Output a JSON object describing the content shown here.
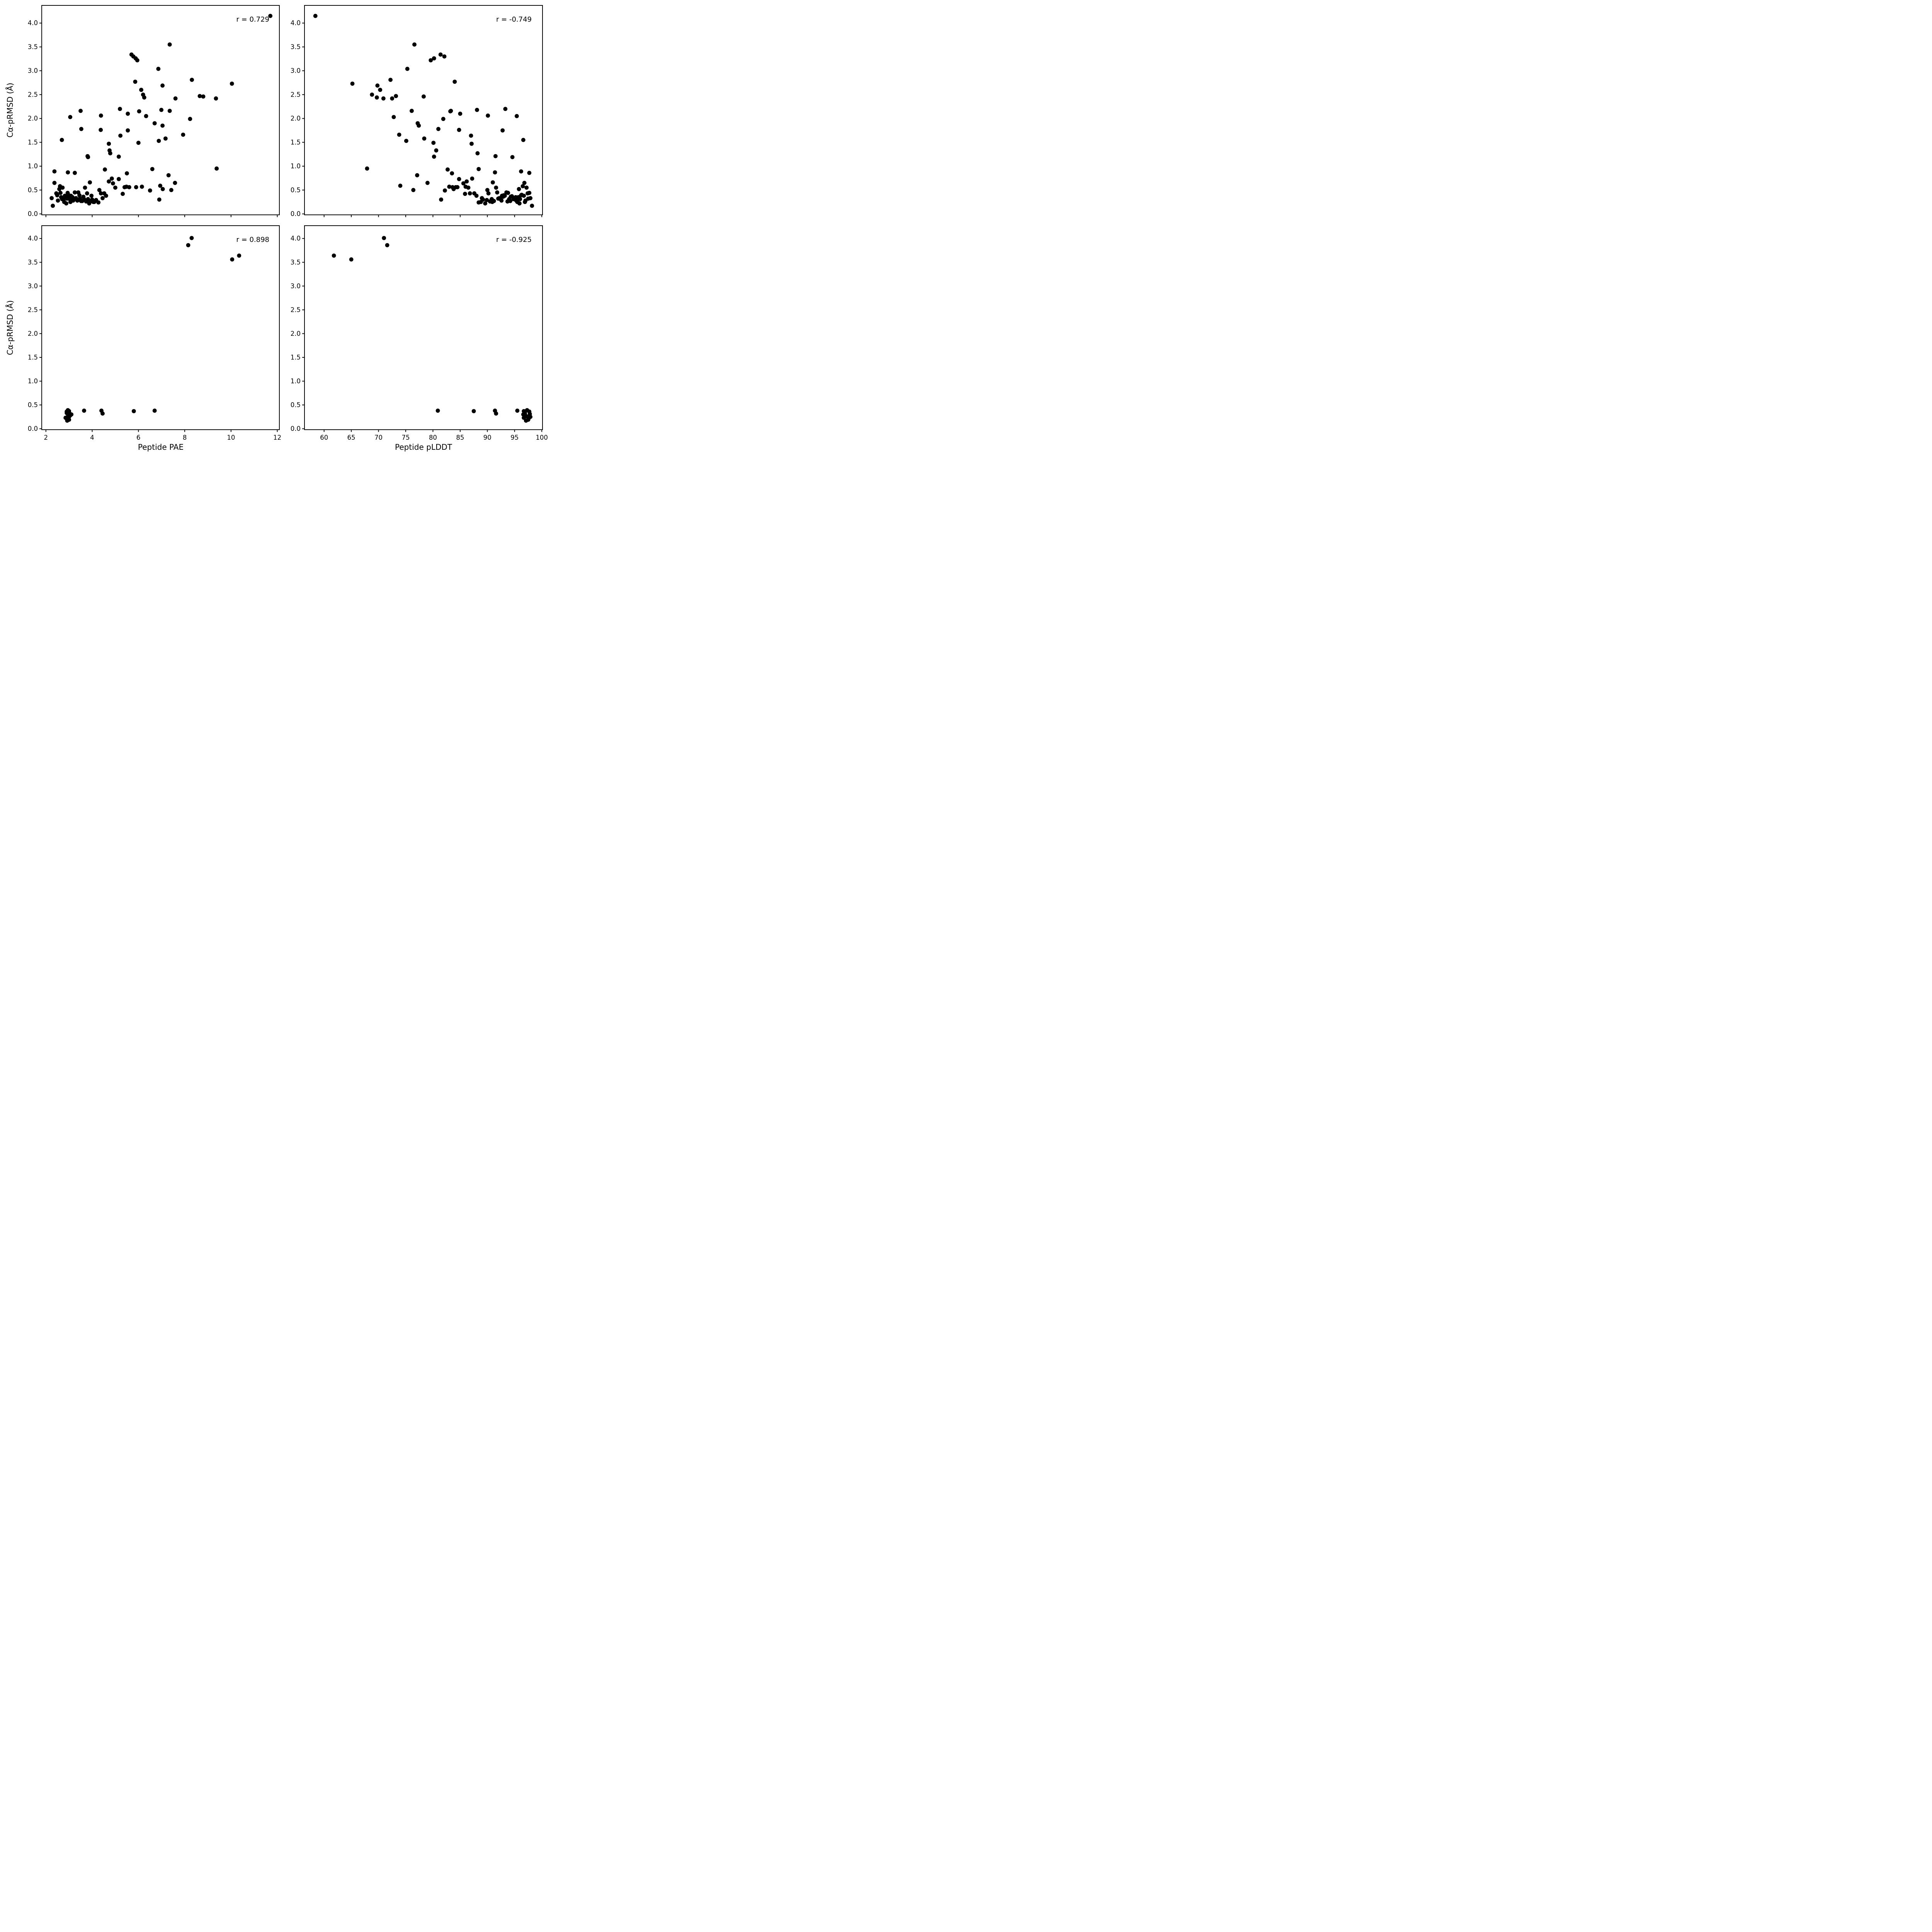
{
  "figure": {
    "background": "#ffffff",
    "marker_color": "#000000",
    "axis_color": "#000000"
  },
  "chart_data": [
    {
      "id": "top-left",
      "type": "scatter",
      "xlabel": "Peptide PAE",
      "ylabel": "Cα-pRMSD (Å)",
      "annotation": "r = 0.729",
      "xlim": [
        1.82,
        12.09
      ],
      "ylim": [
        -0.02,
        4.37
      ],
      "xticks": [
        2,
        4,
        6,
        8,
        10,
        12
      ],
      "xtick_labels": [
        "2",
        "4",
        "6",
        "8",
        "10",
        "12"
      ],
      "show_xtick_labels": false,
      "yticks": [
        0,
        0.5,
        1,
        1.5,
        2,
        2.5,
        3,
        3.5,
        4
      ],
      "ytick_labels": [
        "0.0",
        "0.5",
        "1.0",
        "1.5",
        "2.0",
        "2.5",
        "3.0",
        "3.5",
        "4.0"
      ],
      "grid": false,
      "x": [
        11.7,
        7.35,
        5.7,
        5.78,
        5.88,
        5.95,
        6.86,
        8.31,
        5.86,
        10.04,
        7.04,
        6.12,
        6.2,
        6.25,
        8.65,
        8.8,
        9.35,
        7.6,
        3.5,
        3.05,
        4.38,
        5.54,
        6.03,
        6.33,
        6.99,
        7.35,
        8.23,
        5.2,
        6.7,
        7.04,
        3.53,
        4.37,
        5.54,
        7.93,
        5.22,
        6.88,
        2.69,
        7.17,
        4.72,
        6.0,
        4.75,
        3.8,
        4.78,
        3.82,
        5.15,
        9.38,
        6.6,
        7.3,
        2.37,
        3.25,
        2.95,
        5.5,
        4.55,
        2.25,
        2.3,
        2.37,
        2.45,
        2.49,
        2.52,
        2.58,
        2.61,
        2.63,
        2.66,
        2.7,
        2.72,
        2.76,
        2.79,
        2.82,
        2.86,
        2.88,
        2.91,
        2.94,
        2.97,
        3.0,
        3.03,
        3.06,
        3.08,
        3.11,
        3.15,
        3.18,
        3.21,
        3.25,
        3.3,
        3.36,
        3.4,
        3.45,
        3.47,
        3.52,
        3.57,
        3.62,
        3.65,
        3.69,
        3.74,
        3.78,
        3.82,
        3.87,
        3.9,
        3.92,
        3.97,
        4.0,
        4.05,
        4.09,
        4.17,
        4.27,
        4.31,
        4.38,
        4.45,
        4.52,
        4.6,
        4.72,
        4.85,
        4.9,
        5.0,
        5.15,
        5.32,
        5.4,
        5.48,
        5.6,
        5.9,
        6.15,
        6.5,
        6.94,
        7.05,
        7.42,
        7.58,
        6.9
      ],
      "y": [
        4.15,
        3.55,
        3.34,
        3.3,
        3.26,
        3.22,
        3.04,
        2.81,
        2.77,
        2.73,
        2.69,
        2.6,
        2.5,
        2.44,
        2.47,
        2.46,
        2.42,
        2.42,
        2.16,
        2.03,
        2.06,
        2.1,
        2.15,
        2.05,
        2.18,
        2.16,
        1.99,
        2.2,
        1.9,
        1.85,
        1.78,
        1.76,
        1.75,
        1.66,
        1.64,
        1.53,
        1.55,
        1.58,
        1.47,
        1.49,
        1.33,
        1.21,
        1.27,
        1.19,
        1.2,
        0.95,
        0.94,
        0.81,
        0.89,
        0.86,
        0.87,
        0.85,
        0.93,
        0.33,
        0.17,
        0.65,
        0.43,
        0.39,
        0.28,
        0.52,
        0.58,
        0.44,
        0.35,
        0.31,
        0.55,
        0.31,
        0.25,
        0.38,
        0.36,
        0.22,
        0.32,
        0.44,
        0.4,
        0.37,
        0.31,
        0.25,
        0.38,
        0.31,
        0.35,
        0.28,
        0.31,
        0.45,
        0.33,
        0.28,
        0.45,
        0.39,
        0.32,
        0.27,
        0.27,
        0.36,
        0.31,
        0.55,
        0.26,
        0.43,
        0.31,
        0.22,
        0.66,
        0.26,
        0.38,
        0.3,
        0.25,
        0.25,
        0.29,
        0.24,
        0.5,
        0.43,
        0.33,
        0.43,
        0.38,
        0.68,
        0.74,
        0.64,
        0.55,
        0.73,
        0.42,
        0.56,
        0.57,
        0.56,
        0.56,
        0.57,
        0.49,
        0.59,
        0.52,
        0.5,
        0.65,
        0.3
      ]
    },
    {
      "id": "top-right",
      "type": "scatter",
      "xlabel": "Peptide pLDDT",
      "ylabel": "Cα-pRMSD (Å)",
      "annotation": "r = -0.749",
      "xlim": [
        56.4,
        100.13
      ],
      "ylim": [
        -0.02,
        4.37
      ],
      "xticks": [
        60,
        65,
        70,
        75,
        80,
        85,
        90,
        95,
        100
      ],
      "xtick_labels": [
        "60",
        "65",
        "70",
        "75",
        "80",
        "85",
        "90",
        "95",
        "100"
      ],
      "show_xtick_labels": false,
      "yticks": [
        0,
        0.5,
        1,
        1.5,
        2,
        2.5,
        3,
        3.5,
        4
      ],
      "ytick_labels": [
        "0.0",
        "0.5",
        "1.0",
        "1.5",
        "2.0",
        "2.5",
        "3.0",
        "3.5",
        "4.0"
      ],
      "grid": false,
      "x": [
        58.4,
        76.6,
        81.4,
        82.1,
        80.2,
        79.6,
        75.3,
        72.2,
        84.0,
        65.2,
        69.8,
        70.3,
        68.8,
        69.7,
        73.2,
        78.3,
        70.9,
        72.5,
        76.1,
        72.8,
        90.1,
        85.0,
        83.2,
        95.4,
        88.1,
        83.3,
        81.9,
        93.3,
        77.2,
        77.4,
        81.0,
        84.8,
        92.8,
        73.8,
        87.0,
        75.1,
        96.6,
        78.4,
        87.1,
        80.1,
        80.6,
        91.5,
        88.2,
        94.6,
        80.2,
        67.9,
        88.4,
        77.1,
        96.2,
        97.7,
        91.4,
        83.5,
        82.7,
        97.9,
        98.2,
        96.8,
        97.4,
        96.2,
        97.0,
        95.8,
        96.5,
        97.7,
        95.2,
        96.0,
        97.2,
        94.8,
        95.5,
        96.7,
        94.3,
        95.9,
        97.5,
        93.8,
        96.3,
        94.5,
        95.1,
        96.9,
        93.2,
        94.0,
        95.7,
        92.6,
        94.9,
        93.5,
        92.2,
        95.3,
        91.8,
        93.0,
        92.0,
        94.2,
        91.2,
        92.9,
        90.8,
        91.6,
        93.7,
        90.2,
        92.4,
        89.6,
        91.0,
        90.5,
        92.7,
        89.2,
        90.9,
        88.8,
        89.9,
        88.4,
        90.0,
        87.6,
        89.0,
        86.8,
        88.0,
        86.2,
        87.2,
        85.6,
        86.5,
        84.8,
        85.9,
        84.2,
        86.0,
        83.6,
        84.5,
        83.0,
        82.2,
        74.0,
        83.8,
        76.4,
        79.0,
        81.5
      ],
      "y": [
        4.15,
        3.55,
        3.34,
        3.3,
        3.26,
        3.22,
        3.04,
        2.81,
        2.77,
        2.73,
        2.69,
        2.6,
        2.5,
        2.44,
        2.47,
        2.46,
        2.42,
        2.42,
        2.16,
        2.03,
        2.06,
        2.1,
        2.15,
        2.05,
        2.18,
        2.16,
        1.99,
        2.2,
        1.9,
        1.85,
        1.78,
        1.76,
        1.75,
        1.66,
        1.64,
        1.53,
        1.55,
        1.58,
        1.47,
        1.49,
        1.33,
        1.21,
        1.27,
        1.19,
        1.2,
        0.95,
        0.94,
        0.81,
        0.89,
        0.86,
        0.87,
        0.85,
        0.93,
        0.33,
        0.17,
        0.65,
        0.43,
        0.39,
        0.28,
        0.52,
        0.58,
        0.44,
        0.35,
        0.31,
        0.55,
        0.31,
        0.25,
        0.38,
        0.36,
        0.22,
        0.32,
        0.44,
        0.4,
        0.37,
        0.31,
        0.25,
        0.38,
        0.31,
        0.35,
        0.28,
        0.31,
        0.45,
        0.33,
        0.28,
        0.45,
        0.39,
        0.32,
        0.27,
        0.27,
        0.36,
        0.31,
        0.55,
        0.26,
        0.43,
        0.31,
        0.22,
        0.66,
        0.26,
        0.38,
        0.3,
        0.25,
        0.25,
        0.29,
        0.24,
        0.5,
        0.43,
        0.33,
        0.43,
        0.38,
        0.68,
        0.74,
        0.64,
        0.55,
        0.73,
        0.42,
        0.56,
        0.57,
        0.56,
        0.56,
        0.57,
        0.49,
        0.59,
        0.52,
        0.5,
        0.65,
        0.3
      ]
    },
    {
      "id": "bottom-left",
      "type": "scatter",
      "xlabel": "Peptide PAE",
      "ylabel": "Cα-pRMSD (Å)",
      "annotation": "r = 0.898",
      "xlim": [
        1.82,
        12.09
      ],
      "ylim": [
        -0.02,
        4.27
      ],
      "xticks": [
        2,
        4,
        6,
        8,
        10,
        12
      ],
      "xtick_labels": [
        "2",
        "4",
        "6",
        "8",
        "10",
        "12"
      ],
      "show_xtick_labels": true,
      "yticks": [
        0,
        0.5,
        1,
        1.5,
        2,
        2.5,
        3,
        3.5,
        4
      ],
      "ytick_labels": [
        "0.0",
        "0.5",
        "1.0",
        "1.5",
        "2.0",
        "2.5",
        "3.0",
        "3.5",
        "4.0"
      ],
      "grid": false,
      "x": [
        8.3,
        8.15,
        10.35,
        10.05,
        6.7,
        5.8,
        3.65,
        4.4,
        4.45,
        2.95,
        3.0,
        2.9,
        3.05,
        2.85,
        3.0,
        2.9,
        3.05,
        2.95,
        2.88,
        3.1,
        2.92,
        3.0
      ],
      "y": [
        4.01,
        3.86,
        3.64,
        3.56,
        0.38,
        0.37,
        0.38,
        0.38,
        0.32,
        0.39,
        0.37,
        0.36,
        0.28,
        0.23,
        0.19,
        0.33,
        0.31,
        0.26,
        0.22,
        0.3,
        0.17,
        0.25
      ]
    },
    {
      "id": "bottom-right",
      "type": "scatter",
      "xlabel": "Peptide pLDDT",
      "ylabel": "Cα-pRMSD (Å)",
      "annotation": "r = -0.925",
      "xlim": [
        56.4,
        100.13
      ],
      "ylim": [
        -0.02,
        4.27
      ],
      "xticks": [
        60,
        65,
        70,
        75,
        80,
        85,
        90,
        95,
        100
      ],
      "xtick_labels": [
        "60",
        "65",
        "70",
        "75",
        "80",
        "85",
        "90",
        "95",
        "100"
      ],
      "show_xtick_labels": true,
      "yticks": [
        0,
        0.5,
        1,
        1.5,
        2,
        2.5,
        3,
        3.5,
        4
      ],
      "ytick_labels": [
        "0.0",
        "0.5",
        "1.0",
        "1.5",
        "2.0",
        "2.5",
        "3.0",
        "3.5",
        "4.0"
      ],
      "grid": false,
      "x": [
        71.0,
        71.6,
        61.8,
        65.0,
        80.9,
        87.5,
        95.5,
        91.4,
        91.6,
        97.3,
        96.7,
        97.7,
        97.0,
        96.7,
        97.5,
        96.9,
        97.8,
        97.2,
        97.6,
        96.6,
        97.1,
        97.9
      ],
      "y": [
        4.01,
        3.86,
        3.64,
        3.56,
        0.38,
        0.37,
        0.38,
        0.38,
        0.32,
        0.39,
        0.37,
        0.36,
        0.28,
        0.23,
        0.19,
        0.33,
        0.31,
        0.26,
        0.22,
        0.3,
        0.17,
        0.25
      ]
    }
  ]
}
